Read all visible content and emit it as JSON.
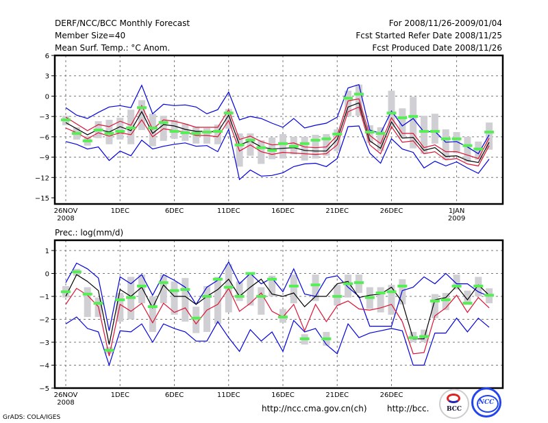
{
  "header": {
    "title": "DERF/NCC/BCC Monthly Forecast",
    "member_size": "Member Size=40",
    "variable": "Mean Surf. Temp.: °C Anom.",
    "period": "For 2008/11/26-2009/01/04",
    "started": "Fcst Started Refer Date 2008/11/25",
    "produced": "Fcst Produced Date 2008/11/26"
  },
  "footer": {
    "grads": "GrADS: COLA/IGES",
    "url_ncc": "http://ncc.cma.gov.cn(ch)",
    "url_bcc": "http://bcc.",
    "logo_bcc": "BCC",
    "logo_ncc": "NCC"
  },
  "colors": {
    "blue": "#0000dd",
    "red": "#dd1133",
    "black": "#000000",
    "green": "#55ee55",
    "gray": "#d0d0d4"
  },
  "chart_data": [
    {
      "type": "line",
      "title": "Mean Surf. Temp.: °C Anom.",
      "xlabel": "",
      "ylabel": "",
      "ylim": [
        -15,
        6
      ],
      "yticks": [
        6,
        3,
        0,
        -3,
        -6,
        -9,
        -12,
        -15
      ],
      "xtick_labels": [
        {
          "day": 0,
          "label": "26NOV",
          "sub": "2008"
        },
        {
          "day": 5,
          "label": "1DEC",
          "sub": ""
        },
        {
          "day": 10,
          "label": "6DEC",
          "sub": ""
        },
        {
          "day": 15,
          "label": "11DEC",
          "sub": ""
        },
        {
          "day": 20,
          "label": "16DEC",
          "sub": ""
        },
        {
          "day": 25,
          "label": "21DEC",
          "sub": ""
        },
        {
          "day": 30,
          "label": "26DEC",
          "sub": ""
        },
        {
          "day": 36,
          "label": "1JAN",
          "sub": "2009"
        }
      ],
      "grid": true,
      "days": 40,
      "series": [
        {
          "name": "max",
          "color": "blue",
          "values": [
            -1.7,
            -2.8,
            -3.3,
            -2.4,
            -1.6,
            -1.4,
            -1.7,
            1.6,
            -2.6,
            -1.2,
            -1.4,
            -1.3,
            -1.6,
            -2.6,
            -2.0,
            0.6,
            -3.5,
            -3.0,
            -3.3,
            -4.0,
            -4.6,
            -3.3,
            -4.7,
            -4.3,
            -4.0,
            -3.1,
            1.2,
            1.7,
            -5.0,
            -5.5,
            -2.2,
            -4.4,
            -3.3,
            -5.3,
            -5.2,
            -6.8,
            -6.7,
            -7.5,
            -8.5,
            -5.7
          ]
        },
        {
          "name": "upper",
          "color": "red",
          "values": [
            -3.1,
            -4.1,
            -5.1,
            -4.2,
            -4.5,
            -3.7,
            -4.3,
            -1.4,
            -4.9,
            -3.5,
            -3.7,
            -4.1,
            -4.6,
            -4.6,
            -4.6,
            -2.0,
            -6.4,
            -5.9,
            -6.7,
            -7.2,
            -7.1,
            -6.9,
            -7.5,
            -7.6,
            -7.5,
            -5.8,
            -0.7,
            -0.4,
            -5.8,
            -7.0,
            -3.2,
            -5.5,
            -5.5,
            -7.6,
            -7.2,
            -8.2,
            -8.2,
            -8.7,
            -9.2,
            -6.2
          ]
        },
        {
          "name": "mean",
          "color": "black",
          "values": [
            -3.9,
            -4.8,
            -5.7,
            -4.9,
            -5.3,
            -4.5,
            -5.1,
            -2.3,
            -5.5,
            -4.2,
            -4.4,
            -4.9,
            -5.2,
            -5.2,
            -5.3,
            -2.8,
            -7.2,
            -6.6,
            -7.5,
            -7.8,
            -7.7,
            -7.6,
            -8.0,
            -8.1,
            -8.1,
            -6.4,
            -1.6,
            -1.0,
            -6.6,
            -7.7,
            -3.8,
            -6.2,
            -6.1,
            -8.0,
            -7.6,
            -8.9,
            -8.8,
            -9.5,
            -9.8,
            -6.8
          ]
        },
        {
          "name": "lower",
          "color": "red",
          "values": [
            -4.7,
            -5.4,
            -6.3,
            -5.4,
            -5.9,
            -5.4,
            -5.7,
            -3.5,
            -6.0,
            -4.8,
            -5.1,
            -5.3,
            -5.8,
            -5.8,
            -6.0,
            -3.6,
            -8.1,
            -7.2,
            -8.2,
            -8.6,
            -8.3,
            -8.4,
            -8.5,
            -8.6,
            -8.5,
            -7.2,
            -2.3,
            -1.6,
            -7.2,
            -8.5,
            -4.5,
            -6.8,
            -6.6,
            -8.5,
            -8.2,
            -9.4,
            -9.2,
            -10.0,
            -10.3,
            -7.3
          ]
        },
        {
          "name": "min",
          "color": "blue",
          "values": [
            -6.7,
            -7.1,
            -7.8,
            -7.5,
            -9.5,
            -8.1,
            -8.8,
            -6.5,
            -7.8,
            -7.4,
            -7.1,
            -6.9,
            -7.4,
            -7.3,
            -8.2,
            -4.9,
            -12.3,
            -10.9,
            -11.8,
            -11.7,
            -11.3,
            -10.4,
            -10.0,
            -9.9,
            -10.4,
            -9.2,
            -4.5,
            -4.4,
            -8.4,
            -9.9,
            -6.3,
            -7.8,
            -8.3,
            -10.6,
            -9.6,
            -10.3,
            -9.7,
            -10.6,
            -11.4,
            -9.3
          ]
        },
        {
          "name": "observed/median",
          "color": "green",
          "values": [
            -3.5,
            -5.5,
            -6.6,
            -5.0,
            -5.5,
            -5.2,
            -4.7,
            -1.7,
            -4.7,
            -3.9,
            -5.2,
            -5.4,
            -5.5,
            -5.3,
            -5.2,
            -2.5,
            -7.2,
            -6.5,
            -7.6,
            -8.0,
            -7.0,
            -7.4,
            -7.0,
            -6.5,
            -6.3,
            -5.6,
            -0.3,
            0.3,
            -5.3,
            -5.5,
            -2.5,
            -3.2,
            -3.0,
            -5.2,
            -5.2,
            -6.3,
            -6.3,
            -7.3,
            -7.8,
            -5.3
          ]
        },
        {
          "name": "spread-bar-top",
          "color": "gray",
          "values": [
            -2.9,
            -4.6,
            -5.9,
            -3.7,
            -3.5,
            -3.2,
            -2.0,
            -0.6,
            -2.6,
            -2.9,
            -3.5,
            -4.1,
            -4.5,
            -4.7,
            -4.2,
            -1.9,
            -5.5,
            -5.5,
            -6.5,
            -6.1,
            -5.6,
            -6.0,
            -6.0,
            -5.7,
            -5.6,
            -4.9,
            0.8,
            1.7,
            -4.3,
            -4.6,
            0.8,
            -1.8,
            -0.1,
            -2.9,
            -2.6,
            -4.9,
            -5.3,
            -6.0,
            -6.7,
            -3.9
          ]
        },
        {
          "name": "spread-bar-bottom",
          "color": "gray",
          "values": [
            -4.3,
            -6.4,
            -7.3,
            -6.2,
            -7.1,
            -6.4,
            -7.1,
            -5.0,
            -7.4,
            -6.6,
            -6.3,
            -6.6,
            -7.0,
            -7.0,
            -7.1,
            -4.8,
            -10.4,
            -8.8,
            -10.0,
            -9.3,
            -9.2,
            -8.6,
            -9.5,
            -9.2,
            -8.8,
            -8.1,
            -3.0,
            -2.9,
            -6.9,
            -8.1,
            -4.6,
            -6.2,
            -7.7,
            -8.5,
            -7.0,
            -9.4,
            -8.4,
            -9.7,
            -9.4,
            -7.9
          ]
        }
      ]
    },
    {
      "type": "line",
      "title": "Prec.: log(mm/d)",
      "xlabel": "",
      "ylabel": "",
      "ylim": [
        -5,
        1.5
      ],
      "yticks": [
        1,
        0,
        -1,
        -2,
        -3,
        -4,
        -5
      ],
      "xtick_labels": [
        {
          "day": 0,
          "label": "26NOV",
          "sub": "2008"
        },
        {
          "day": 5,
          "label": "1DEC",
          "sub": ""
        },
        {
          "day": 10,
          "label": "6DEC",
          "sub": ""
        },
        {
          "day": 15,
          "label": "11DEC",
          "sub": ""
        },
        {
          "day": 20,
          "label": "16DEC",
          "sub": ""
        },
        {
          "day": 25,
          "label": "21DEC",
          "sub": ""
        },
        {
          "day": 30,
          "label": "26DEC",
          "sub": ""
        }
      ],
      "grid": true,
      "days": 40,
      "series": [
        {
          "name": "max",
          "color": "blue",
          "values": [
            -0.4,
            0.45,
            0.2,
            -0.2,
            -2.5,
            -0.15,
            -0.45,
            -0.05,
            -0.95,
            -0.05,
            -0.3,
            -0.6,
            -1.35,
            -0.6,
            -0.3,
            0.5,
            -0.45,
            0.0,
            -0.45,
            -0.2,
            -0.8,
            0.2,
            -0.9,
            -1.0,
            -0.2,
            -0.1,
            -0.6,
            -1.0,
            -2.3,
            -2.3,
            -2.3,
            -0.75,
            -0.6,
            -0.15,
            -0.45,
            0.0,
            -0.45,
            -0.45,
            -0.8,
            -1.0
          ]
        },
        {
          "name": "upper-mean",
          "color": "black",
          "values": [
            -1.0,
            -0.05,
            -0.35,
            -0.75,
            -3.1,
            -0.7,
            -1.0,
            -0.6,
            -1.5,
            -0.5,
            -1.0,
            -1.0,
            -1.35,
            -1.0,
            -0.7,
            -0.25,
            -1.0,
            -0.6,
            -0.25,
            -0.9,
            -1.0,
            -0.85,
            -1.45,
            -1.0,
            -1.0,
            -0.45,
            -0.35,
            -1.05,
            -0.95,
            -0.9,
            -0.6,
            -1.25,
            -2.85,
            -2.85,
            -1.15,
            -1.05,
            -0.55,
            -1.15,
            -0.5,
            -0.95
          ]
        },
        {
          "name": "lower",
          "color": "red",
          "values": [
            -1.35,
            -0.65,
            -0.95,
            -1.45,
            -3.6,
            -1.35,
            -1.65,
            -1.3,
            -2.15,
            -1.3,
            -1.7,
            -1.5,
            -2.2,
            -1.6,
            -1.35,
            -0.65,
            -1.65,
            -1.3,
            -0.85,
            -1.65,
            -1.9,
            -1.35,
            -2.5,
            -1.35,
            -2.1,
            -1.4,
            -1.2,
            -1.55,
            -1.6,
            -1.5,
            -1.35,
            -2.1,
            -3.5,
            -3.45,
            -1.85,
            -1.5,
            -0.95,
            -1.7,
            -1.05,
            -1.5
          ]
        },
        {
          "name": "min",
          "color": "blue",
          "values": [
            -2.2,
            -1.9,
            -2.4,
            -2.55,
            -4.0,
            -2.5,
            -2.55,
            -2.2,
            -3.0,
            -2.2,
            -2.4,
            -2.55,
            -2.95,
            -2.95,
            -2.1,
            -2.8,
            -3.4,
            -2.45,
            -2.95,
            -2.55,
            -3.4,
            -2.05,
            -2.55,
            -2.4,
            -3.1,
            -3.5,
            -2.2,
            -2.8,
            -2.6,
            -2.5,
            -2.4,
            -2.5,
            -4.0,
            -4.0,
            -2.6,
            -2.6,
            -1.95,
            -2.55,
            -1.95,
            -2.35
          ]
        },
        {
          "name": "observed/median",
          "color": "green",
          "values": [
            -0.8,
            0.07,
            -0.9,
            -1.3,
            -3.35,
            -1.15,
            -1.05,
            -0.55,
            -1.45,
            -0.4,
            -0.75,
            -0.7,
            -1.95,
            -1.0,
            -0.25,
            -0.6,
            -1.0,
            0.0,
            -1.0,
            -0.25,
            -1.9,
            -0.55,
            -2.85,
            -0.5,
            -2.85,
            -1.0,
            -0.45,
            -0.4,
            -1.05,
            -0.85,
            -0.8,
            -0.55,
            -2.8,
            -2.75,
            -1.2,
            -1.15,
            -0.55,
            -1.3,
            -0.55,
            -0.95
          ]
        },
        {
          "name": "spread-bar-top",
          "color": "gray",
          "values": [
            -0.55,
            0.2,
            -0.6,
            -1.05,
            -3.2,
            -0.85,
            -0.15,
            -0.05,
            -1.0,
            -0.05,
            -0.35,
            -0.2,
            -1.45,
            -0.55,
            -0.15,
            0.4,
            -0.35,
            -0.05,
            -0.6,
            -0.1,
            -1.55,
            -0.05,
            -2.65,
            -0.05,
            -2.55,
            -0.5,
            -0.05,
            -0.05,
            -0.6,
            -0.6,
            -0.5,
            -0.25,
            -2.55,
            -2.45,
            -0.9,
            -0.85,
            -0.05,
            -0.75,
            -0.15,
            -0.65
          ]
        },
        {
          "name": "spread-bar-bottom",
          "color": "gray",
          "values": [
            -1.05,
            -0.1,
            -1.9,
            -1.9,
            -3.5,
            -2.1,
            -2.0,
            -1.3,
            -2.55,
            -1.3,
            -1.8,
            -2.1,
            -2.6,
            -2.55,
            -2.2,
            -1.7,
            -1.2,
            -1.4,
            -1.8,
            -1.0,
            -2.15,
            -1.3,
            -3.1,
            -1.2,
            -3.15,
            -1.4,
            -1.05,
            -0.85,
            -1.55,
            -1.7,
            -1.8,
            -1.35,
            -3.0,
            -3.0,
            -1.95,
            -1.6,
            -0.7,
            -1.3,
            -1.0,
            -1.3
          ]
        }
      ]
    }
  ]
}
